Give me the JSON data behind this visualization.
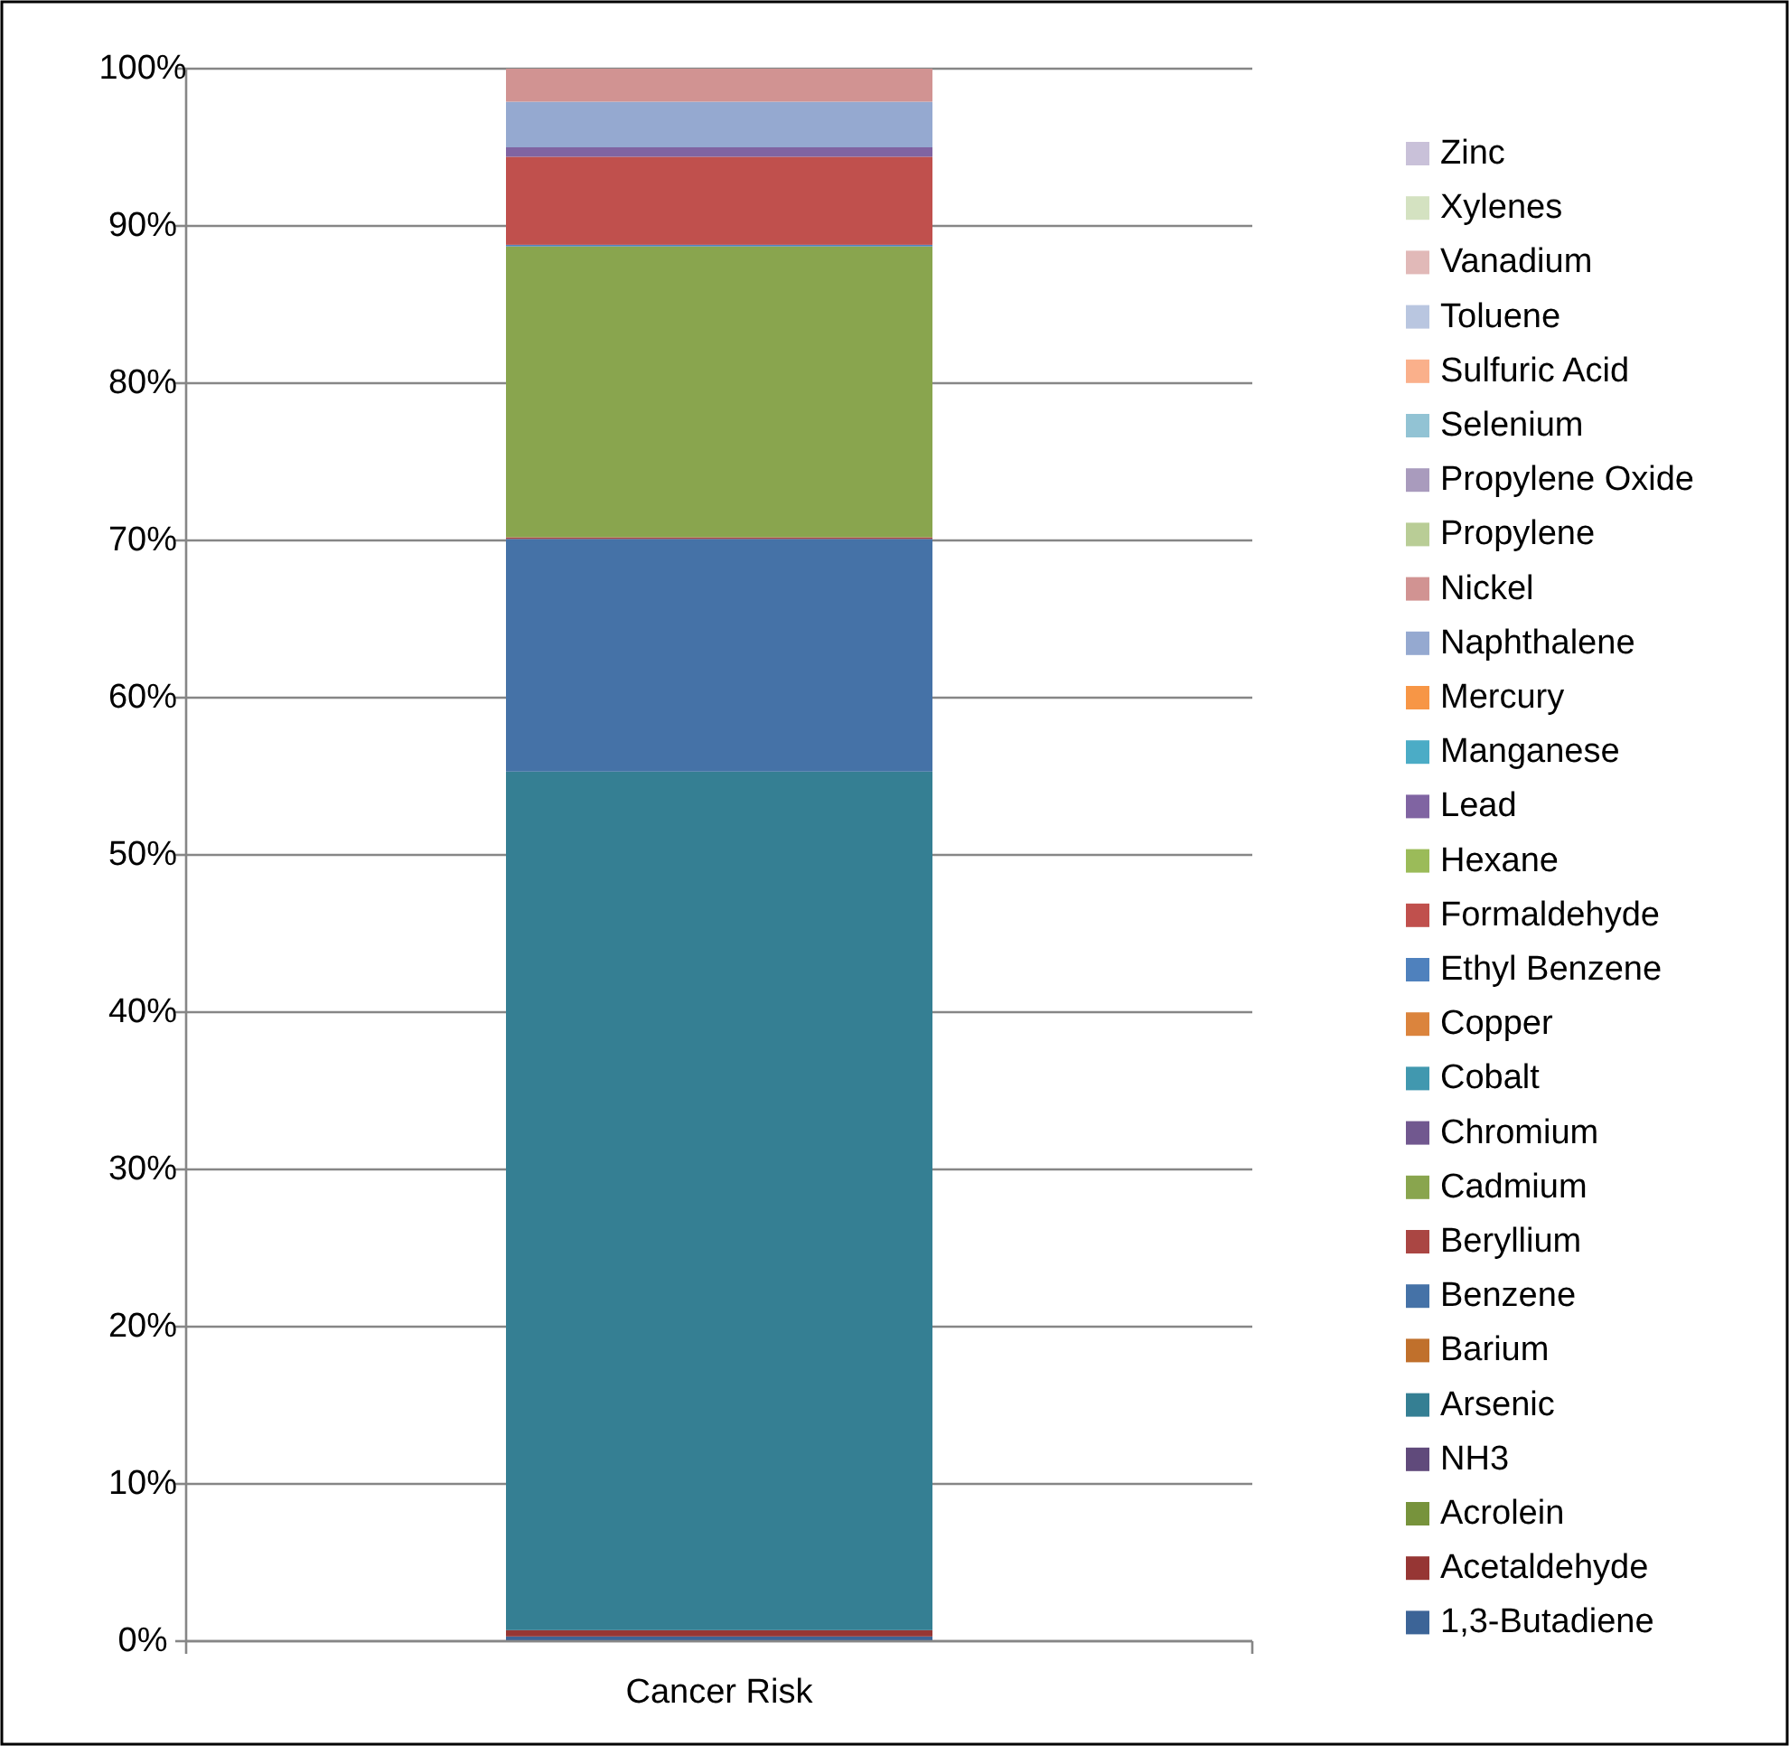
{
  "chart_data": {
    "type": "bar",
    "stacked": true,
    "categories": [
      "Cancer Risk"
    ],
    "ylim": [
      0,
      100
    ],
    "yticks": [
      {
        "value": 0,
        "label": "0%"
      },
      {
        "value": 10,
        "label": "10%"
      },
      {
        "value": 20,
        "label": "20%"
      },
      {
        "value": 30,
        "label": "30%"
      },
      {
        "value": 40,
        "label": "40%"
      },
      {
        "value": 50,
        "label": "50%"
      },
      {
        "value": 60,
        "label": "60%"
      },
      {
        "value": 70,
        "label": "70%"
      },
      {
        "value": 80,
        "label": "80%"
      },
      {
        "value": 90,
        "label": "90%"
      },
      {
        "value": 100,
        "label": "100%"
      }
    ],
    "grid": "y",
    "legend": "right",
    "series": [
      {
        "name": "1,3-Butadiene",
        "color": "#3c6497",
        "values": [
          0.3
        ]
      },
      {
        "name": "Acetaldehyde",
        "color": "#963634",
        "values": [
          0.4
        ]
      },
      {
        "name": "Acrolein",
        "color": "#77933c",
        "values": [
          0
        ]
      },
      {
        "name": "NH3",
        "color": "#604a7b",
        "values": [
          0
        ]
      },
      {
        "name": "Arsenic",
        "color": "#357f93",
        "values": [
          54.6
        ]
      },
      {
        "name": "Barium",
        "color": "#c0702c",
        "values": [
          0
        ]
      },
      {
        "name": "Benzene",
        "color": "#4572a7",
        "values": [
          14.8
        ]
      },
      {
        "name": "Beryllium",
        "color": "#aa4643",
        "values": [
          0.1
        ]
      },
      {
        "name": "Cadmium",
        "color": "#89a54e",
        "values": [
          18.5
        ]
      },
      {
        "name": "Chromium",
        "color": "#71588f",
        "values": [
          0
        ]
      },
      {
        "name": "Cobalt",
        "color": "#4198af",
        "values": [
          0
        ]
      },
      {
        "name": "Copper",
        "color": "#db843d",
        "values": [
          0
        ]
      },
      {
        "name": "Ethyl Benzene",
        "color": "#4f81bd",
        "values": [
          0.1
        ]
      },
      {
        "name": "Formaldehyde",
        "color": "#c0504d",
        "values": [
          5.6
        ]
      },
      {
        "name": "Hexane",
        "color": "#9bbb59",
        "values": [
          0
        ]
      },
      {
        "name": "Lead",
        "color": "#8064a2",
        "values": [
          0.6
        ]
      },
      {
        "name": "Manganese",
        "color": "#4bacc6",
        "values": [
          0
        ]
      },
      {
        "name": "Mercury",
        "color": "#f79646",
        "values": [
          0
        ]
      },
      {
        "name": "Naphthalene",
        "color": "#95a9d0",
        "values": [
          2.9
        ]
      },
      {
        "name": "Nickel",
        "color": "#d19392",
        "values": [
          2.1
        ]
      },
      {
        "name": "Propylene",
        "color": "#b9cd96",
        "values": [
          0
        ]
      },
      {
        "name": "Propylene Oxide",
        "color": "#a99bbd",
        "values": [
          0
        ]
      },
      {
        "name": "Selenium",
        "color": "#92c3d4",
        "values": [
          0
        ]
      },
      {
        "name": "Sulfuric Acid",
        "color": "#fab08b",
        "values": [
          0
        ]
      },
      {
        "name": "Toluene",
        "color": "#b9c6e0",
        "values": [
          0
        ]
      },
      {
        "name": "Vanadium",
        "color": "#e1b9b8",
        "values": [
          0
        ]
      },
      {
        "name": "Xylenes",
        "color": "#d4e2c1",
        "values": [
          0
        ]
      },
      {
        "name": "Zinc",
        "color": "#c9c1d9",
        "values": [
          0
        ]
      }
    ]
  }
}
